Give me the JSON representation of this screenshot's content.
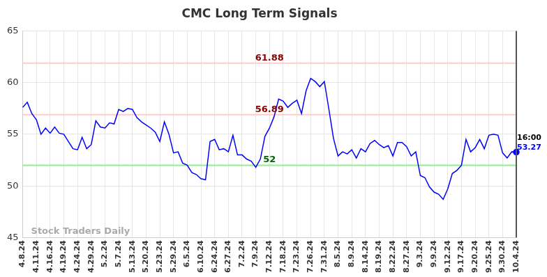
{
  "chart_data": {
    "type": "line",
    "title": "CMC Long Term Signals",
    "categories": [
      "4.8.24",
      null,
      null,
      "4.11.24",
      null,
      null,
      "4.16.24",
      null,
      null,
      "4.19.24",
      null,
      null,
      "4.24.24",
      null,
      null,
      "4.29.24",
      null,
      null,
      "5.2.24",
      null,
      null,
      "5.7.24",
      null,
      null,
      "5.13.24",
      null,
      null,
      "5.20.24",
      null,
      null,
      "5.23.24",
      null,
      null,
      "5.29.24",
      null,
      null,
      "6.5.24",
      null,
      null,
      "6.10.24",
      null,
      null,
      "6.24.24",
      null,
      null,
      "6.27.24",
      null,
      null,
      "7.2.24",
      null,
      null,
      "7.9.24",
      null,
      null,
      "7.12.24",
      null,
      null,
      "7.18.24",
      null,
      null,
      "7.23.24",
      null,
      null,
      "7.26.24",
      null,
      null,
      "7.31.24",
      null,
      null,
      "8.5.24",
      null,
      null,
      "8.9.24",
      null,
      null,
      "8.14.24",
      null,
      null,
      "8.19.24",
      null,
      null,
      "8.22.24",
      null,
      null,
      "8.27.24",
      null,
      null,
      "9.3.24",
      null,
      null,
      "9.9.24",
      null,
      null,
      "9.12.24",
      null,
      null,
      "9.17.24",
      null,
      null,
      "9.20.24",
      null,
      null,
      "9.25.24",
      null,
      null,
      "9.30.24",
      null,
      null,
      "10.4.24"
    ],
    "values": [
      57.6,
      58.1,
      57.0,
      56.4,
      55.0,
      55.6,
      55.1,
      55.7,
      55.1,
      55.0,
      54.3,
      53.6,
      53.5,
      54.7,
      53.6,
      54.0,
      56.3,
      55.7,
      55.6,
      56.1,
      56.0,
      57.4,
      57.2,
      57.5,
      57.4,
      56.6,
      56.2,
      55.9,
      55.6,
      55.2,
      54.3,
      56.2,
      55.0,
      53.2,
      53.3,
      52.2,
      52.0,
      51.3,
      51.1,
      50.7,
      50.6,
      54.3,
      54.5,
      53.5,
      53.6,
      53.3,
      54.9,
      53.0,
      53.0,
      52.6,
      52.4,
      51.8,
      52.6,
      54.8,
      55.6,
      56.7,
      58.4,
      58.2,
      57.6,
      58.0,
      58.3,
      57.0,
      59.2,
      60.4,
      60.1,
      59.6,
      60.1,
      57.4,
      54.6,
      52.9,
      53.3,
      53.1,
      53.5,
      52.7,
      53.6,
      53.3,
      54.1,
      54.4,
      54.0,
      53.7,
      53.9,
      52.9,
      54.2,
      54.2,
      53.8,
      52.9,
      53.3,
      51.0,
      50.8,
      49.9,
      49.4,
      49.2,
      48.7,
      49.7,
      51.2,
      51.5,
      52.0,
      54.5,
      53.3,
      53.7,
      54.5,
      53.6,
      54.9,
      55.0,
      54.9,
      53.2,
      52.7,
      53.3,
      53.27
    ],
    "color": "#0000ff",
    "hlines": [
      {
        "value": 61.88,
        "color": "#ffcccc",
        "label_color": "#8b0000"
      },
      {
        "value": 56.89,
        "color": "#ffcccc",
        "label_color": "#8b0000"
      },
      {
        "value": 52,
        "color": "#90ee90",
        "label_color": "#006400"
      }
    ],
    "end_label": "16:00",
    "watermark": "Stock Traders Daily",
    "ylim": [
      45,
      65
    ],
    "yticks": [
      45,
      50,
      55,
      60,
      65
    ],
    "grid": true
  }
}
